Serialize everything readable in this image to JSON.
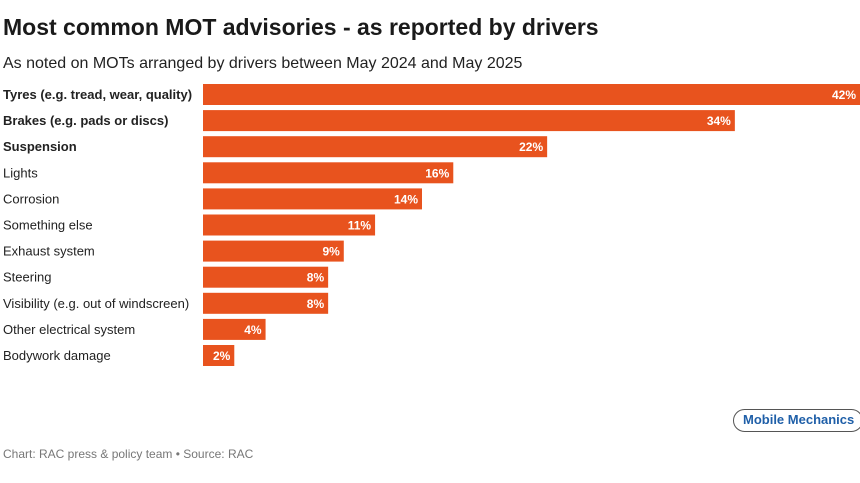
{
  "chart_data": {
    "type": "bar",
    "orientation": "horizontal",
    "title": "Most common MOT advisories - as reported by drivers",
    "subtitle": "As noted on MOTs arranged by drivers between May 2024 and May 2025",
    "categories": [
      "Tyres (e.g. tread, wear, quality)",
      "Brakes (e.g. pads or discs)",
      "Suspension",
      "Lights",
      "Corrosion",
      "Something else",
      "Exhaust system",
      "Steering",
      "Visibility (e.g. out of windscreen)",
      "Other electrical system",
      "Bodywork damage"
    ],
    "bold": [
      true,
      true,
      true,
      false,
      false,
      false,
      false,
      false,
      false,
      false,
      false
    ],
    "values": [
      42,
      34,
      22,
      16,
      14,
      11,
      9,
      8,
      8,
      4,
      2
    ],
    "data_labels": [
      "42%",
      "34%",
      "22%",
      "16%",
      "14%",
      "11%",
      "9%",
      "8%",
      "8%",
      "4%",
      "2%"
    ],
    "xlim": [
      0,
      42
    ],
    "grid": false,
    "color": "#e8531e",
    "footer": "Chart: RAC press & policy team • Source: RAC",
    "badge": "Mobile Mechanics"
  }
}
